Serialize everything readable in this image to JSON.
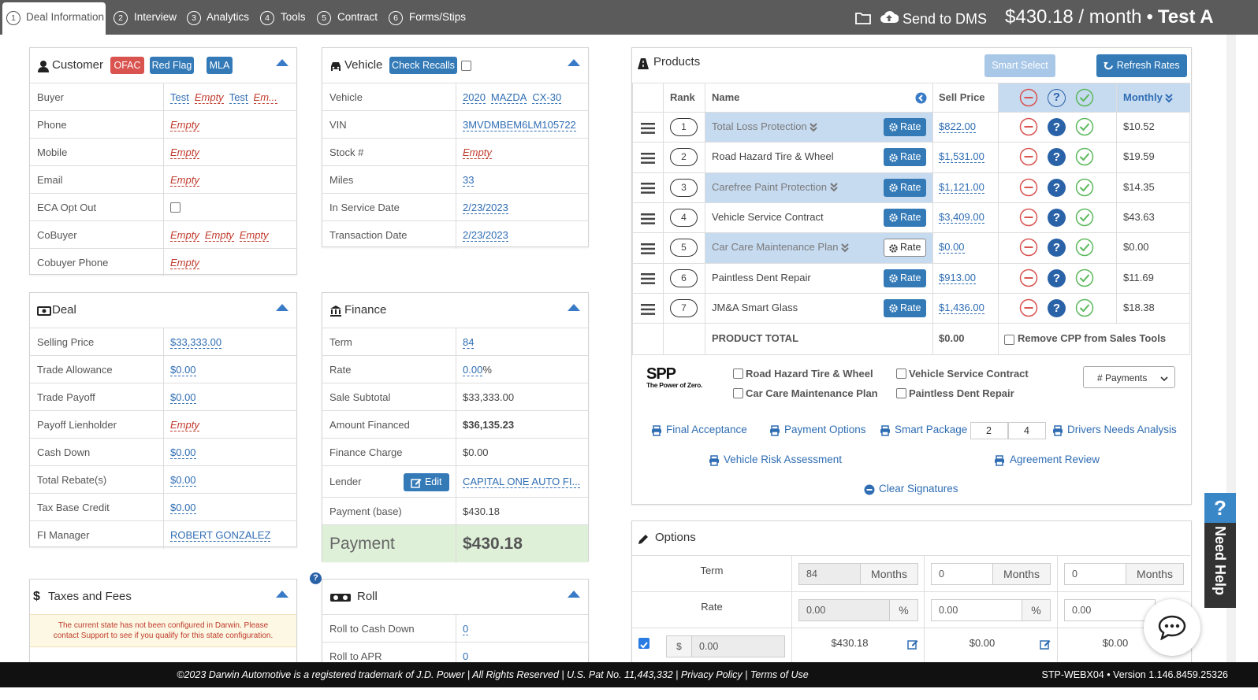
{
  "nav": {
    "tabs": [
      {
        "number": "1",
        "label": "Deal Information"
      },
      {
        "number": "2",
        "label": "Interview"
      },
      {
        "number": "3",
        "label": "Analytics"
      },
      {
        "number": "4",
        "label": "Tools"
      },
      {
        "number": "5",
        "label": "Contract"
      },
      {
        "number": "6",
        "label": "Forms/Stips"
      }
    ],
    "send": "Send to DMS",
    "payment": "$430.18 / month",
    "separator": "•",
    "customer": "Test A"
  },
  "customer": {
    "title": "Customer",
    "badges": [
      "OFAC",
      "Red Flag",
      "MLA"
    ],
    "rows": [
      {
        "label": "Buyer",
        "values": [
          "Test",
          "Empty",
          "Test",
          "Em..."
        ]
      },
      {
        "label": "Phone",
        "values": [
          "Empty"
        ]
      },
      {
        "label": "Mobile",
        "values": [
          "Empty"
        ]
      },
      {
        "label": "Email",
        "values": [
          "Empty"
        ]
      },
      {
        "label": "ECA Opt Out"
      },
      {
        "label": "CoBuyer",
        "values": [
          "Empty",
          "Empty",
          "Empty"
        ]
      },
      {
        "label": "Cobuyer Phone",
        "values": [
          "Empty"
        ]
      }
    ]
  },
  "vehicle": {
    "title": "Vehicle",
    "button": "Check Recalls",
    "rows": [
      {
        "label": "Vehicle",
        "values": [
          "2020",
          "MAZDA",
          "CX-30"
        ]
      },
      {
        "label": "VIN",
        "values": [
          "3MVDMBEM6LM105722"
        ]
      },
      {
        "label": "Stock #",
        "values": [
          "Empty"
        ]
      },
      {
        "label": "Miles",
        "values": [
          "33"
        ]
      },
      {
        "label": "In Service Date",
        "values": [
          "2/23/2023"
        ]
      },
      {
        "label": "Transaction Date",
        "values": [
          "2/23/2023"
        ]
      }
    ]
  },
  "deal": {
    "title": "Deal",
    "rows": [
      {
        "label": "Selling Price",
        "values": [
          "$33,333.00"
        ]
      },
      {
        "label": "Trade Allowance",
        "values": [
          "$0.00"
        ]
      },
      {
        "label": "Trade Payoff",
        "values": [
          "$0.00"
        ]
      },
      {
        "label": "Payoff Lienholder",
        "values": [
          "Empty"
        ]
      },
      {
        "label": "Cash Down",
        "values": [
          "$0.00"
        ]
      },
      {
        "label": "Total Rebate(s)",
        "values": [
          "$0.00"
        ]
      },
      {
        "label": "Tax Base Credit",
        "values": [
          "$0.00"
        ]
      },
      {
        "label": "FI Manager",
        "values": [
          "ROBERT GONZALEZ"
        ]
      }
    ]
  },
  "finance": {
    "title": "Finance",
    "rows": [
      {
        "label": "Term",
        "values": [
          "84"
        ]
      },
      {
        "label": "Rate",
        "values": [
          "0.00",
          "%"
        ]
      },
      {
        "label": "Sale Subtotal",
        "values": [
          "$33,333.00"
        ]
      },
      {
        "label": "Amount Financed",
        "values": [
          "$36,135.23"
        ]
      },
      {
        "label": "Finance Charge",
        "values": [
          "$0.00"
        ]
      },
      {
        "label": "Lender",
        "button": "Edit",
        "values": [
          "CAPITAL ONE AUTO FI..."
        ]
      },
      {
        "label": "Payment (base)",
        "values": [
          "$430.18"
        ]
      },
      {
        "label": "Payment",
        "values": [
          "$430.18"
        ]
      }
    ]
  },
  "taxes": {
    "icon": "$",
    "title": "Taxes and Fees",
    "warning": "The current state has not been configured in Darwin. Please contact Support to see if you qualify for this state configuration."
  },
  "roll": {
    "title": "Roll",
    "rows": [
      {
        "label": "Roll to Cash Down",
        "values": [
          "0"
        ]
      },
      {
        "label": "Roll to APR",
        "values": [
          "0"
        ]
      }
    ]
  },
  "products": {
    "title": "Products",
    "smart_select": "Smart Select",
    "refresh_rates": "Refresh Rates",
    "columns": {
      "rank": "Rank",
      "name": "Name",
      "sell_price": "Sell Price",
      "monthly": "Monthly"
    },
    "rate_label": "Rate",
    "help_icon": "?",
    "items": [
      {
        "rank": "1",
        "name": "Total Loss Protection",
        "sell_price": "$822.00",
        "monthly": "$10.52"
      },
      {
        "rank": "2",
        "name": "Road Hazard Tire & Wheel",
        "sell_price": "$1,531.00",
        "monthly": "$19.59"
      },
      {
        "rank": "3",
        "name": "Carefree Paint Protection",
        "sell_price": "$1,121.00",
        "monthly": "$14.35"
      },
      {
        "rank": "4",
        "name": "Vehicle Service Contract",
        "sell_price": "$3,409.00",
        "monthly": "$43.63"
      },
      {
        "rank": "5",
        "name": "Car Care Maintenance Plan",
        "sell_price": "$0.00",
        "monthly": "$0.00"
      },
      {
        "rank": "6",
        "name": "Paintless Dent Repair",
        "sell_price": "$913.00",
        "monthly": "$11.69"
      },
      {
        "rank": "7",
        "name": "JM&A Smart Glass",
        "sell_price": "$1,436.00",
        "monthly": "$18.38"
      }
    ],
    "total_label": "PRODUCT TOTAL",
    "total": "$0.00",
    "remove_cpp": "Remove CPP from Sales Tools",
    "spp": {
      "logo": "SPP",
      "tagline": "The Power of Zero.",
      "options": [
        "Road Hazard Tire & Wheel",
        "Vehicle Service Contract",
        "Car Care Maintenance Plan",
        "Paintless Dent Repair"
      ]
    },
    "payments_select": "# Payments",
    "links": [
      "Final Acceptance",
      "Payment Options",
      "Smart Package",
      "Drivers Needs Analysis",
      "Vehicle Risk Assessment",
      "Agreement Review",
      "Clear Signatures"
    ],
    "smart_package_inputs": [
      "2",
      "4"
    ]
  },
  "options": {
    "title": "Options",
    "term_label": "Term",
    "rate_label": "Rate",
    "term": [
      {
        "value": "84",
        "unit": "Months"
      },
      {
        "value": "0",
        "unit": "Months"
      },
      {
        "value": "0",
        "unit": "Months"
      }
    ],
    "rate": [
      {
        "value": "0.00",
        "unit": "%"
      },
      {
        "value": "0.00",
        "unit": "%"
      },
      {
        "value": "0.00"
      }
    ],
    "down": {
      "currency": "$",
      "value": "0.00"
    },
    "payments": [
      "$430.18",
      "$0.00",
      "$0.00"
    ]
  },
  "help": {
    "icon": "?",
    "label": "Need Help"
  },
  "footer": {
    "notice": "©2023 Darwin Automotive is a registered trademark of J.D. Power | All Rights Reserved | U.S. Pat No. 11,443,332 | Privacy Policy | Terms of Use",
    "version": "STP-WEBX04 • Version 1.146.8459.25326"
  }
}
